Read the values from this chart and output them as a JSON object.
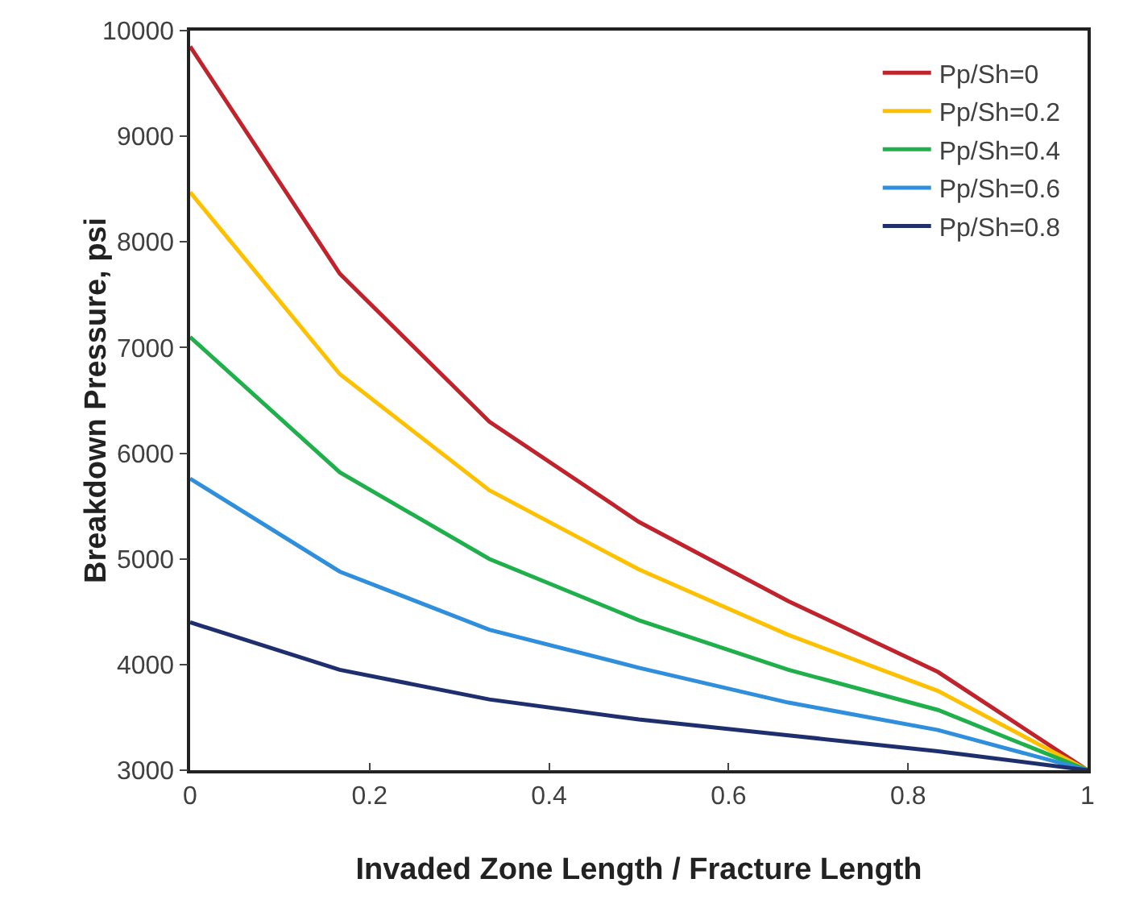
{
  "chart_data": {
    "type": "line",
    "xlabel": "Invaded Zone Length / Fracture Length",
    "ylabel": "Breakdown Pressure, psi",
    "x": [
      0,
      0.1667,
      0.3333,
      0.5,
      0.6667,
      0.8333,
      1
    ],
    "xlim": [
      0,
      1
    ],
    "xticks": [
      0,
      0.2,
      0.4,
      0.6,
      0.8,
      1
    ],
    "ylim": [
      3000,
      10000
    ],
    "yticks": [
      3000,
      4000,
      5000,
      6000,
      7000,
      8000,
      9000,
      10000
    ],
    "grid": false,
    "legend": "top right",
    "marker": "none",
    "line_style": "solid",
    "series": [
      {
        "name": "Pp/Sh=0",
        "color": "#c0232b",
        "values": [
          9850,
          7700,
          6300,
          5350,
          4600,
          3930,
          3000
        ]
      },
      {
        "name": "Pp/Sh=0.2",
        "color": "#ffc000",
        "values": [
          8470,
          6750,
          5650,
          4900,
          4280,
          3750,
          3000
        ]
      },
      {
        "name": "Pp/Sh=0.4",
        "color": "#1fb04c",
        "values": [
          7100,
          5820,
          5000,
          4420,
          3950,
          3570,
          3000
        ]
      },
      {
        "name": "Pp/Sh=0.6",
        "color": "#2f8fdc",
        "values": [
          5760,
          4880,
          4330,
          3970,
          3640,
          3380,
          3000
        ]
      },
      {
        "name": "Pp/Sh=0.8",
        "color": "#1f2f6e",
        "values": [
          4400,
          3950,
          3670,
          3480,
          3330,
          3180,
          3000
        ]
      }
    ]
  }
}
